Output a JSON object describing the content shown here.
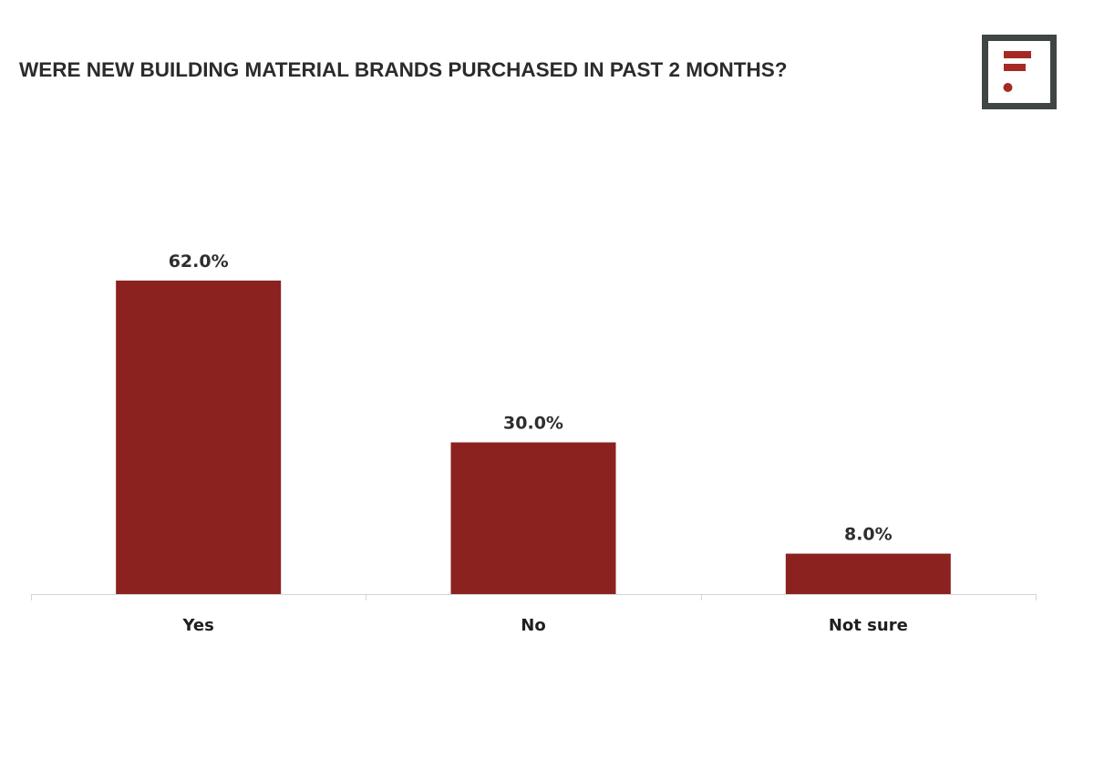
{
  "colors": {
    "bar": "#8b2220",
    "logo_frame": "#3f4643",
    "logo_mark": "#a52a24",
    "axis": "#d4d4d4"
  },
  "logo": {
    "icon": "f-brand-mark-icon"
  },
  "chart_data": {
    "type": "bar",
    "title": "WERE NEW BUILDING MATERIAL BRANDS PURCHASED IN PAST 2 MONTHS?",
    "categories": [
      "Yes",
      "No",
      "Not sure"
    ],
    "values": [
      62.0,
      30.0,
      8.0
    ],
    "data_labels": [
      "62.0%",
      "30.0%",
      "8.0%"
    ],
    "ylim": [
      0,
      80
    ],
    "grid": false,
    "legend": "none"
  }
}
